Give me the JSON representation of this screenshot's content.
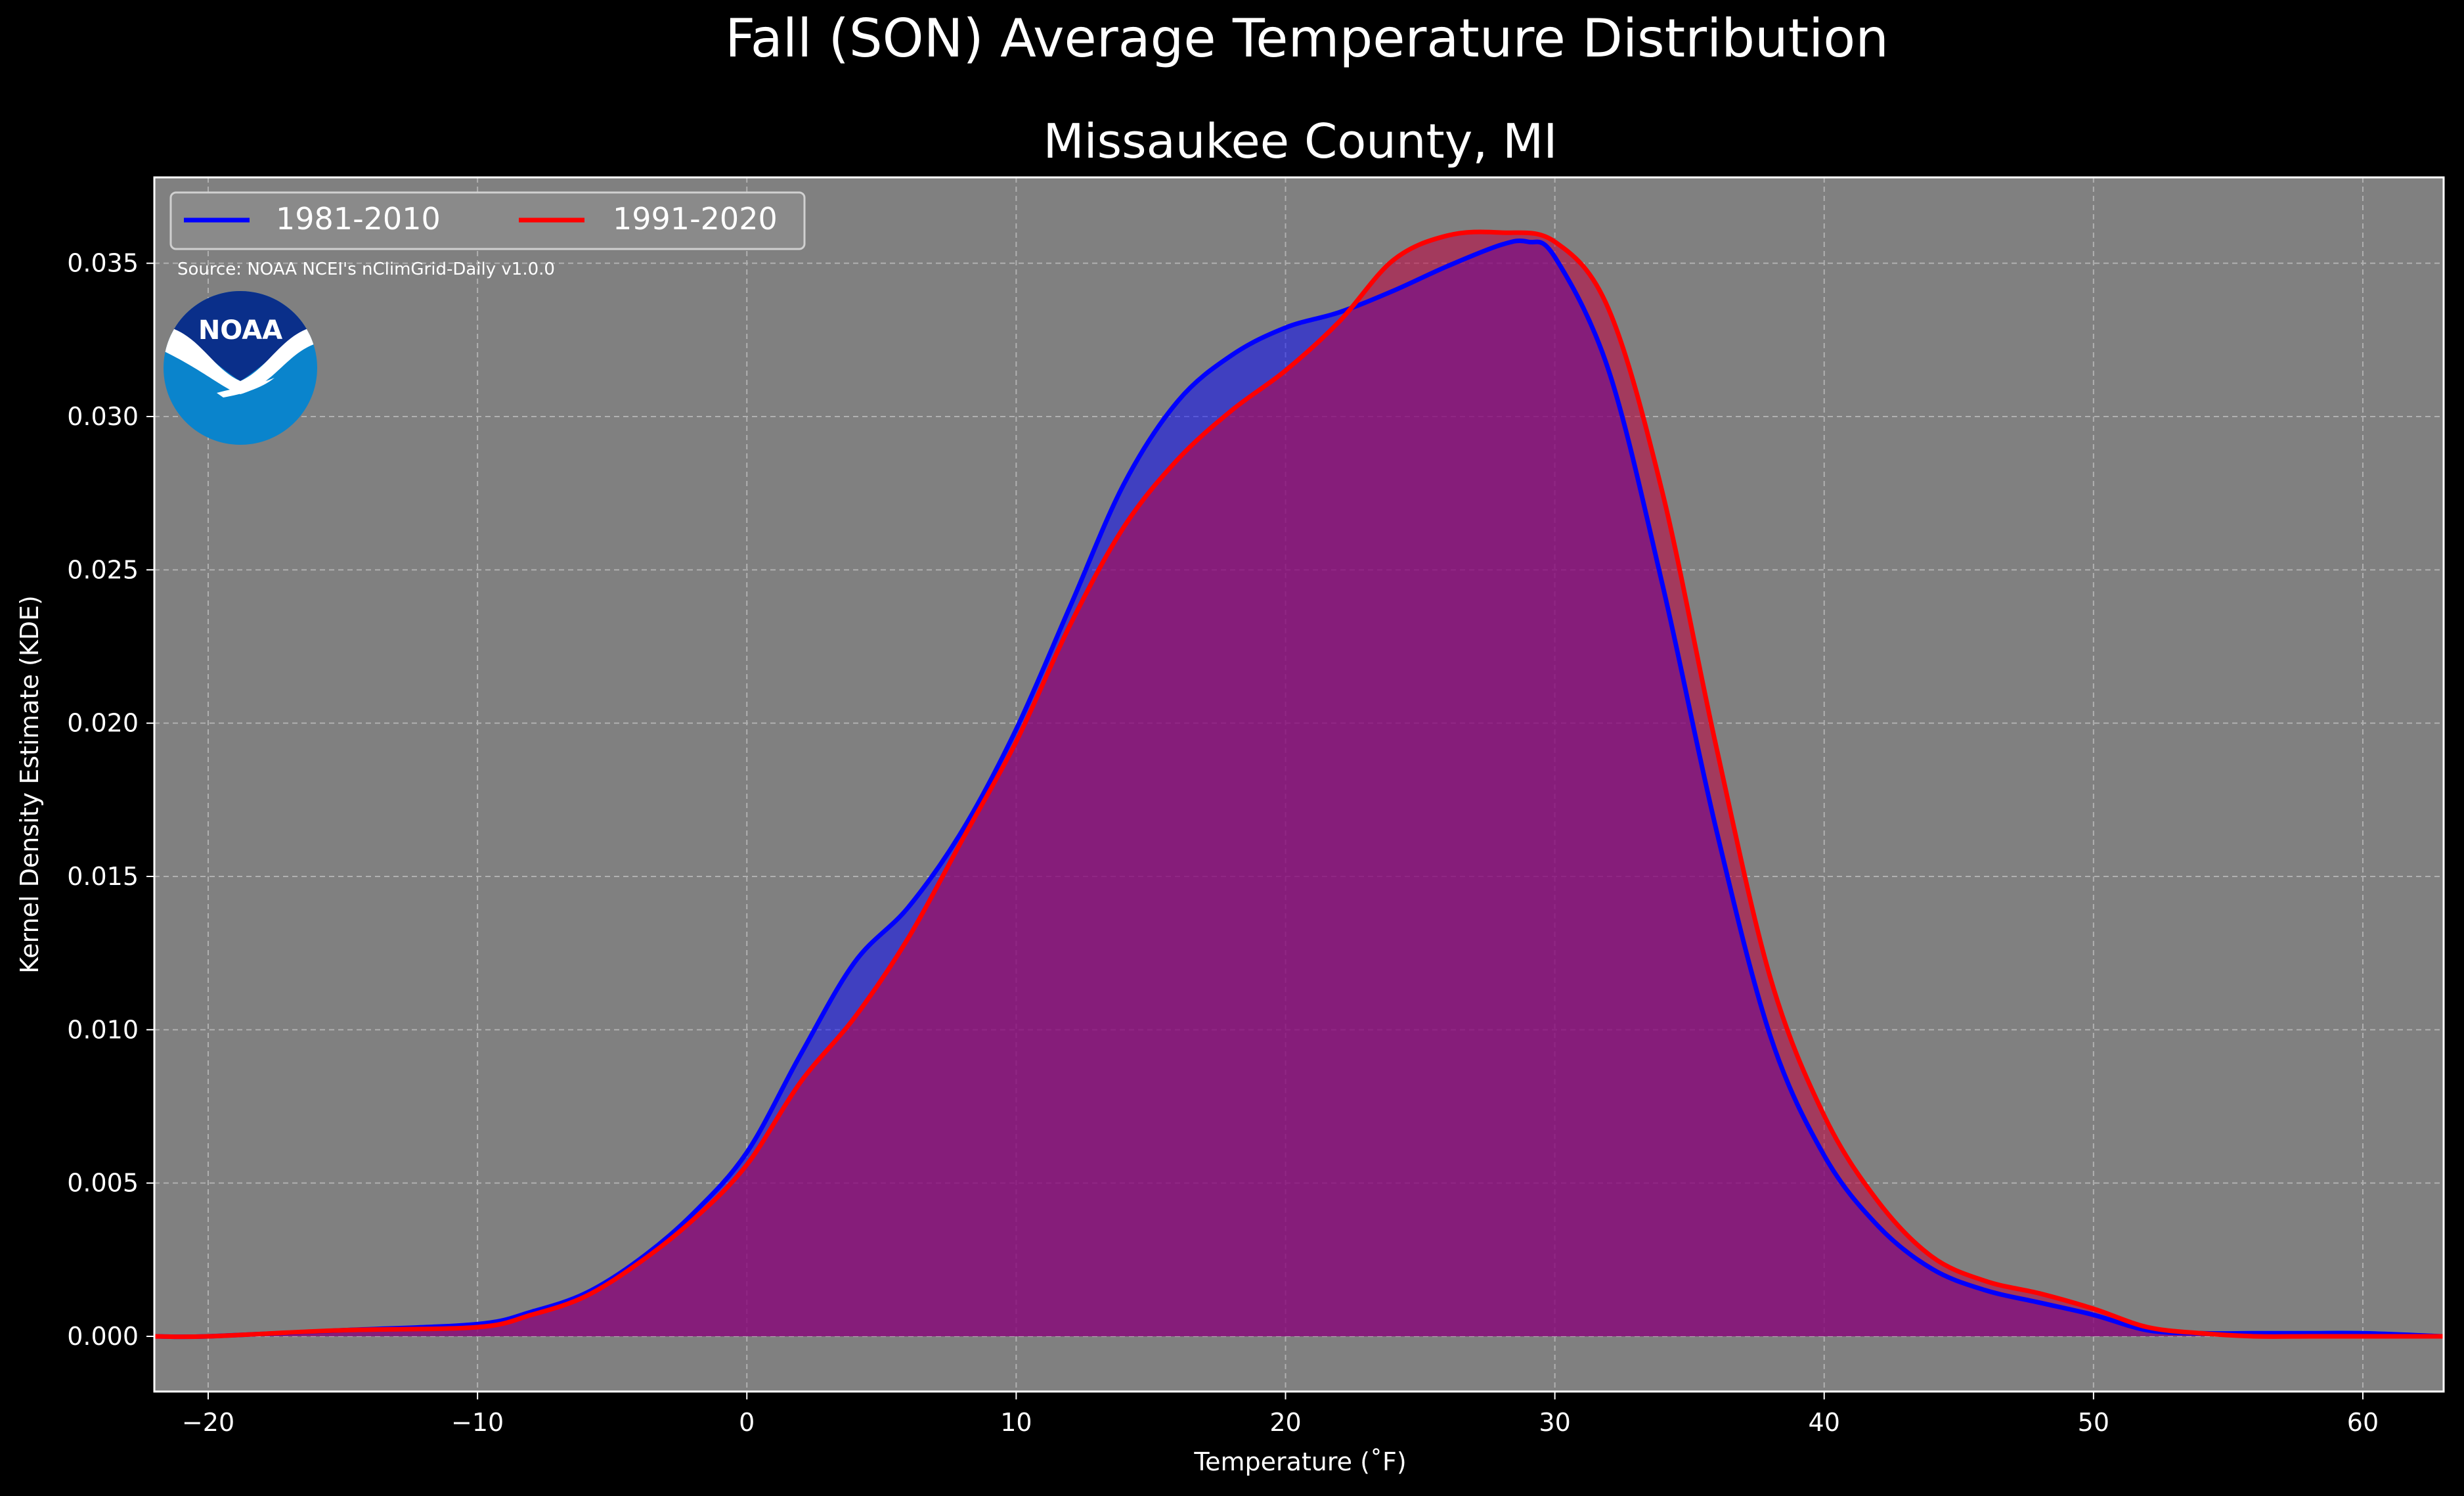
{
  "figure": {
    "suptitle": "Fall (SON) Average Temperature Distribution",
    "title": "Missaukee County, MI",
    "source_note": "Source: NOAA NCEI's nClimGrid-Daily v1.0.0",
    "logo_text": "NOAA",
    "colors": {
      "background": "#000000",
      "axes_face": "#808080",
      "grid": "#b0b0b0",
      "text": "#ffffff",
      "logo_dark": "#0a2f8a",
      "logo_light": "#0a84cc"
    }
  },
  "chart_data": {
    "type": "area",
    "xlabel": "Temperature (˚F)",
    "ylabel": "Kernel Density Estimate (KDE)",
    "xlim": [
      -22,
      63
    ],
    "ylim": [
      -0.0018,
      0.0378
    ],
    "xticks": [
      -20,
      -10,
      0,
      10,
      20,
      30,
      40,
      50,
      60
    ],
    "xtick_labels": [
      "−20",
      "−10",
      "0",
      "10",
      "20",
      "30",
      "40",
      "50",
      "60"
    ],
    "yticks": [
      0.0,
      0.005,
      0.01,
      0.015,
      0.02,
      0.025,
      0.03,
      0.035
    ],
    "ytick_labels": [
      "0.000",
      "0.005",
      "0.010",
      "0.015",
      "0.020",
      "0.025",
      "0.030",
      "0.035"
    ],
    "grid": true,
    "legend_position": "top-left",
    "series": [
      {
        "name": "1981-2010",
        "color": "#0000ff",
        "fill": "rgba(0,0,255,0.5)",
        "x": [
          -22,
          -20,
          -15,
          -10,
          -8,
          -6,
          -4,
          -2,
          0,
          2,
          4,
          6,
          8,
          10,
          12,
          14,
          16,
          18,
          20,
          22,
          24,
          26,
          28,
          29,
          30,
          32,
          34,
          36,
          38,
          40,
          42,
          44,
          46,
          48,
          50,
          52,
          54,
          56,
          58,
          60,
          63
        ],
        "y": [
          0.0,
          0.0,
          0.0002,
          0.0004,
          0.0008,
          0.0014,
          0.0025,
          0.004,
          0.006,
          0.0092,
          0.0122,
          0.014,
          0.0165,
          0.0198,
          0.0238,
          0.0278,
          0.0305,
          0.032,
          0.0329,
          0.0334,
          0.0341,
          0.0349,
          0.0356,
          0.0357,
          0.0352,
          0.0315,
          0.0245,
          0.0165,
          0.0098,
          0.0059,
          0.0036,
          0.0022,
          0.0015,
          0.0011,
          0.0007,
          0.0002,
          0.0001,
          0.0001,
          0.0001,
          0.0001,
          0.0
        ]
      },
      {
        "name": "1991-2020",
        "color": "#ff0000",
        "fill": "rgba(192,0,64,0.55)",
        "x": [
          -22,
          -20,
          -15,
          -10,
          -8,
          -6,
          -4,
          -2,
          0,
          2,
          4,
          6,
          8,
          10,
          12,
          14,
          16,
          18,
          20,
          22,
          24,
          26,
          28,
          30,
          32,
          34,
          36,
          38,
          40,
          42,
          44,
          46,
          48,
          50,
          52,
          54,
          56,
          58,
          60,
          63
        ],
        "y": [
          0.0,
          0.0,
          0.0002,
          0.0003,
          0.0007,
          0.0013,
          0.0024,
          0.0038,
          0.0056,
          0.0083,
          0.0104,
          0.013,
          0.0162,
          0.0194,
          0.0232,
          0.0264,
          0.0286,
          0.0302,
          0.0315,
          0.0331,
          0.0351,
          0.0359,
          0.036,
          0.0357,
          0.0335,
          0.0275,
          0.0192,
          0.0117,
          0.0072,
          0.0044,
          0.0026,
          0.0018,
          0.0014,
          0.0009,
          0.0003,
          0.0001,
          0.0,
          0.0,
          0.0,
          0.0
        ]
      }
    ]
  }
}
